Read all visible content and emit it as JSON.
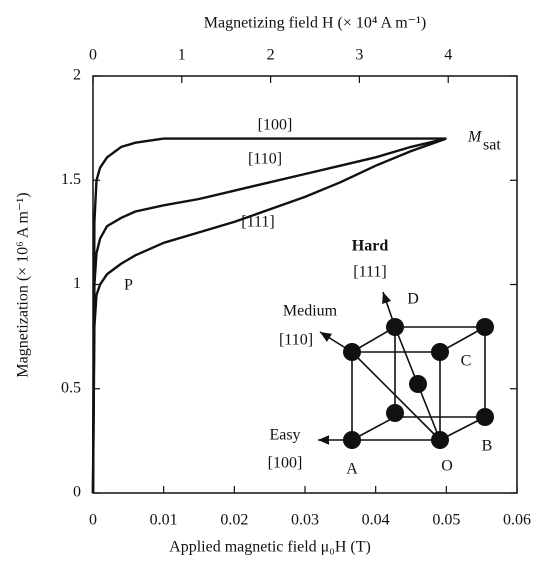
{
  "chart_data": {
    "type": "line",
    "x_label": "Applied magnetic field μ₀H (T)",
    "x2_label": "Magnetizing field H  (× 10⁴ A m⁻¹)",
    "y_label": "Magnetization (× 10⁶ A m⁻¹)",
    "x": [
      0,
      0.0002,
      0.0005,
      0.001,
      0.002,
      0.004,
      0.006,
      0.01,
      0.015,
      0.02,
      0.025,
      0.03,
      0.035,
      0.04,
      0.045,
      0.05
    ],
    "series": [
      {
        "name": "[100]",
        "color": "#111111",
        "values": [
          0,
          1.3,
          1.5,
          1.56,
          1.61,
          1.66,
          1.68,
          1.7,
          1.7,
          1.7,
          1.7,
          1.7,
          1.7,
          1.7,
          1.7,
          1.7
        ]
      },
      {
        "name": "[110]",
        "color": "#111111",
        "values": [
          0,
          1.0,
          1.15,
          1.22,
          1.28,
          1.32,
          1.35,
          1.38,
          1.41,
          1.45,
          1.49,
          1.53,
          1.57,
          1.61,
          1.66,
          1.7
        ]
      },
      {
        "name": "[111]",
        "color": "#111111",
        "values": [
          0,
          0.8,
          0.95,
          1.0,
          1.05,
          1.1,
          1.14,
          1.2,
          1.25,
          1.3,
          1.36,
          1.42,
          1.49,
          1.57,
          1.64,
          1.7
        ]
      }
    ],
    "xlim": [
      0,
      0.06
    ],
    "xticks": [
      0,
      0.01,
      0.02,
      0.03,
      0.04,
      0.05,
      0.06
    ],
    "x2lim": [
      0,
      4.7746
    ],
    "x2ticks": [
      0,
      1,
      2,
      3,
      4
    ],
    "ylim": [
      0,
      2
    ],
    "yticks": [
      0,
      0.5,
      1,
      1.5,
      2
    ],
    "annotations": {
      "msat": {
        "symbol": "M",
        "subscript": "sat"
      },
      "p": "P"
    },
    "inset": {
      "hard": "Hard",
      "hard_dir": "[111]",
      "medium": "Medium",
      "medium_dir": "[110]",
      "easy": "Easy",
      "easy_dir": "[100]",
      "corners": {
        "a": "A",
        "b": "B",
        "c": "C",
        "d": "D",
        "o": "O"
      }
    }
  }
}
